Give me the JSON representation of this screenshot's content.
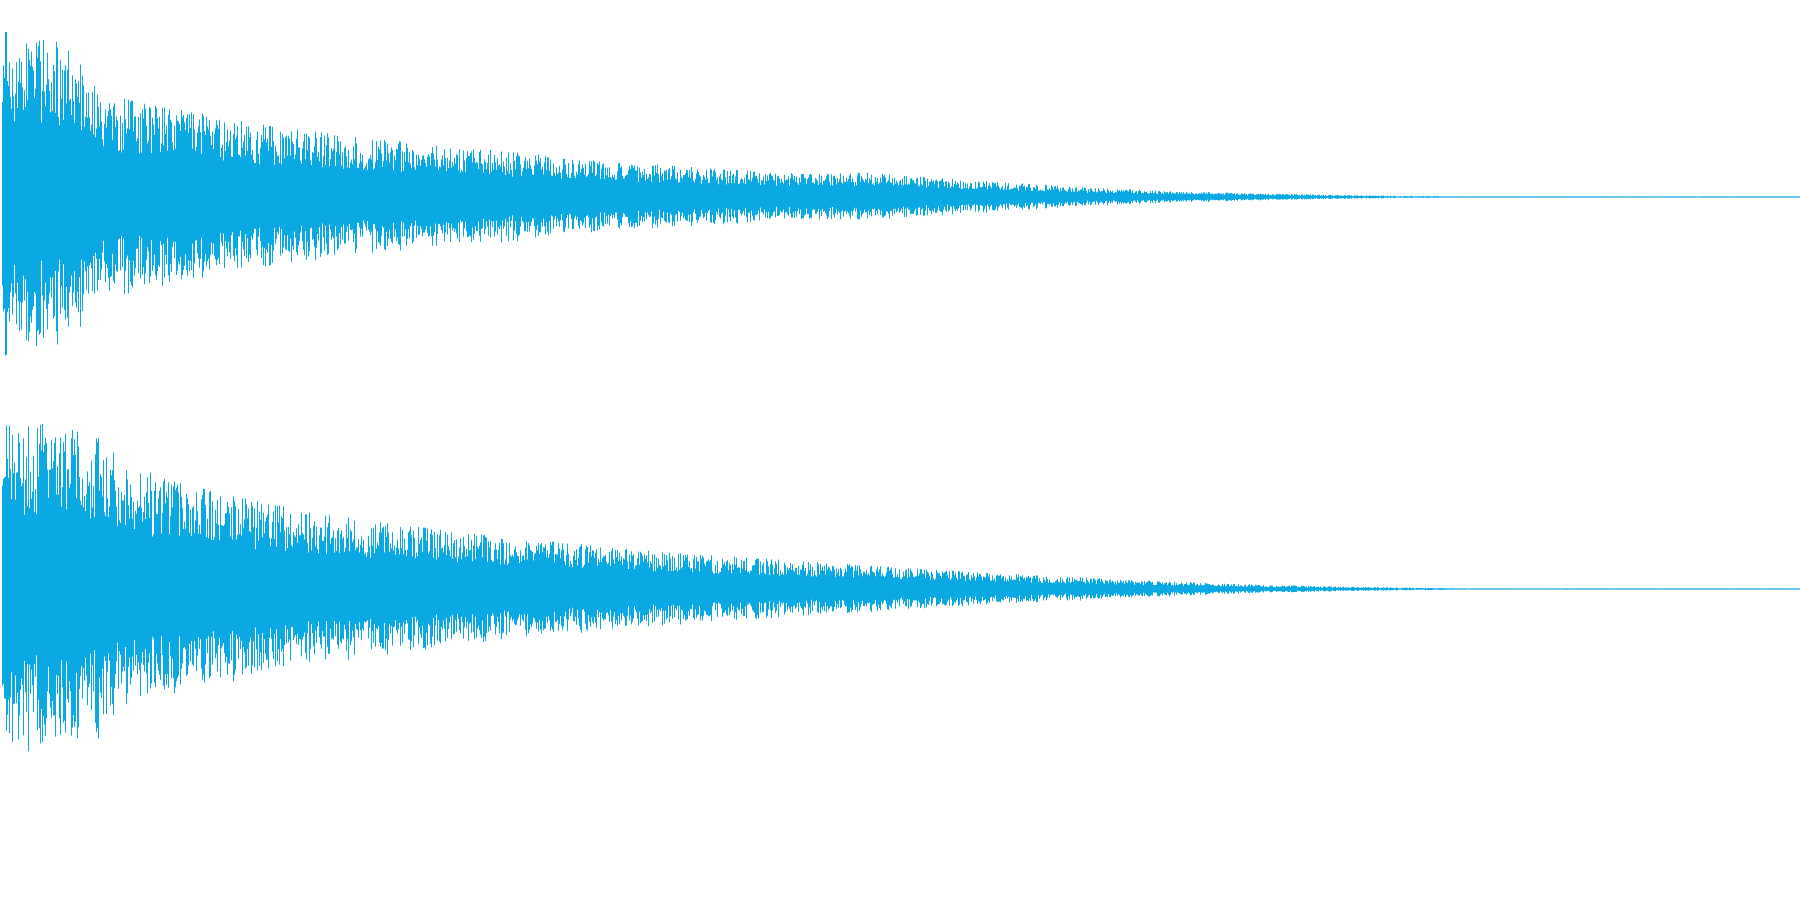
{
  "waveform": {
    "color": "#0aa9e3",
    "background": "#ffffff",
    "channels": [
      {
        "name": "",
        "peak_envelope": [
          1.0,
          1.0,
          0.62,
          0.55,
          0.5,
          0.44,
          0.4,
          0.36,
          0.33,
          0.3,
          0.27,
          0.24,
          0.21,
          0.19,
          0.17,
          0.15,
          0.14,
          0.15,
          0.12,
          0.1,
          0.08,
          0.06,
          0.045,
          0.035,
          0.025,
          0.018,
          0.012,
          0.008,
          0.005,
          0.0,
          0.0,
          0.0,
          0.0,
          0.0,
          0.0,
          0.0
        ]
      },
      {
        "name": "",
        "peak_envelope": [
          1.0,
          1.0,
          0.9,
          0.68,
          0.6,
          0.53,
          0.47,
          0.42,
          0.38,
          0.34,
          0.31,
          0.28,
          0.25,
          0.22,
          0.2,
          0.18,
          0.16,
          0.14,
          0.12,
          0.1,
          0.085,
          0.07,
          0.055,
          0.042,
          0.03,
          0.022,
          0.015,
          0.01,
          0.006,
          0.003,
          0.0,
          0.0,
          0.0,
          0.0,
          0.0,
          0.0
        ]
      }
    ]
  }
}
